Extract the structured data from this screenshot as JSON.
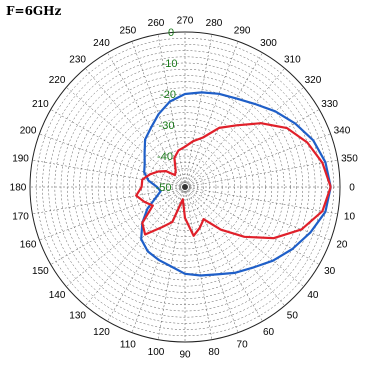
{
  "title": "F=6GHz",
  "chart_data": {
    "type": "polar",
    "title": "F=6GHz",
    "r_range": [
      -50,
      0
    ],
    "r_ticks": [
      0,
      -10,
      -20,
      -30,
      -40,
      -50
    ],
    "r_tick_labels": [
      "0",
      "-10",
      "-20",
      "-30",
      "-40",
      "-50"
    ],
    "angle_ticks": [
      0,
      10,
      20,
      30,
      40,
      50,
      60,
      70,
      80,
      90,
      100,
      110,
      120,
      130,
      140,
      150,
      160,
      170,
      180,
      190,
      200,
      210,
      220,
      230,
      240,
      250,
      260,
      270,
      280,
      290,
      300,
      310,
      320,
      330,
      340,
      350
    ],
    "angle_tick_labels": [
      "0",
      "10",
      "20",
      "30",
      "40",
      "50",
      "60",
      "70",
      "80",
      "90",
      "100",
      "110",
      "120",
      "130",
      "140",
      "150",
      "160",
      "170",
      "180",
      "190",
      "200",
      "210",
      "220",
      "230",
      "240",
      "250",
      "260",
      "270",
      "280",
      "290",
      "300",
      "310",
      "320",
      "330",
      "340",
      "350"
    ],
    "grid": true,
    "series": [
      {
        "color": "#1f5fc8",
        "angles": [
          0,
          10,
          20,
          30,
          40,
          50,
          60,
          70,
          80,
          90,
          100,
          110,
          120,
          130,
          140,
          150,
          160,
          170,
          180,
          190,
          200,
          210,
          220,
          230,
          240,
          250,
          260,
          270,
          280,
          290,
          300,
          310,
          320,
          330,
          340,
          350
        ],
        "values": [
          -3,
          -4,
          -7,
          -10,
          -13,
          -16,
          -18,
          -20,
          -21,
          -22,
          -24,
          -25,
          -26,
          -28,
          -32,
          -36,
          -40,
          -42,
          -41,
          -38,
          -36,
          -35,
          -33,
          -30,
          -28,
          -25,
          -22,
          -20,
          -19,
          -18,
          -17,
          -15,
          -12,
          -9,
          -6,
          -4
        ]
      },
      {
        "color": "#e0202a",
        "angles": [
          0,
          10,
          20,
          30,
          40,
          50,
          60,
          70,
          80,
          90,
          100,
          110,
          120,
          130,
          140,
          150,
          160,
          170,
          180,
          190,
          200,
          210,
          220,
          230,
          240,
          250,
          260,
          270,
          280,
          290,
          300,
          310,
          320,
          330,
          340,
          350
        ],
        "values": [
          -3,
          -5,
          -10,
          -17,
          -25,
          -32,
          -38,
          -36,
          -34,
          -40,
          -46,
          -38,
          -35,
          -30,
          -32,
          -38,
          -36,
          -34,
          -36,
          -36,
          -38,
          -40,
          -42,
          -45,
          -44,
          -40,
          -38,
          -37,
          -35,
          -33,
          -28,
          -24,
          -18,
          -12,
          -8,
          -5
        ]
      }
    ]
  }
}
